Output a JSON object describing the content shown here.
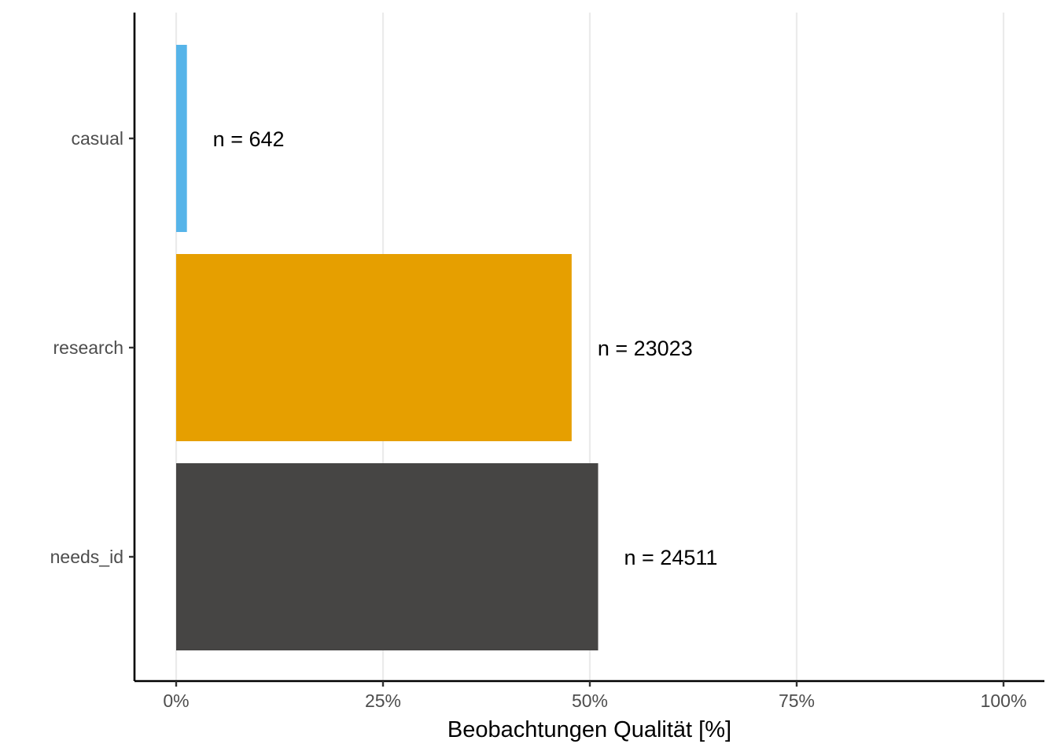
{
  "chart_data": {
    "type": "bar",
    "orientation": "horizontal",
    "categories": [
      "casual",
      "research",
      "needs_id"
    ],
    "values": [
      1.3,
      47.8,
      51.0
    ],
    "bar_labels": [
      "n = 642",
      "n = 23023",
      "n = 24511"
    ],
    "colors": [
      "#56B4E9",
      "#E69F00",
      "#464544"
    ],
    "xlabel": "Beobachtungen Qualität [%]",
    "ylabel": "",
    "xlim": [
      0,
      100
    ],
    "x_ticks": [
      0,
      25,
      50,
      75,
      100
    ],
    "x_tick_labels": [
      "0%",
      "25%",
      "50%",
      "75%",
      "100%"
    ],
    "grid": "vertical major",
    "legend": "none"
  }
}
